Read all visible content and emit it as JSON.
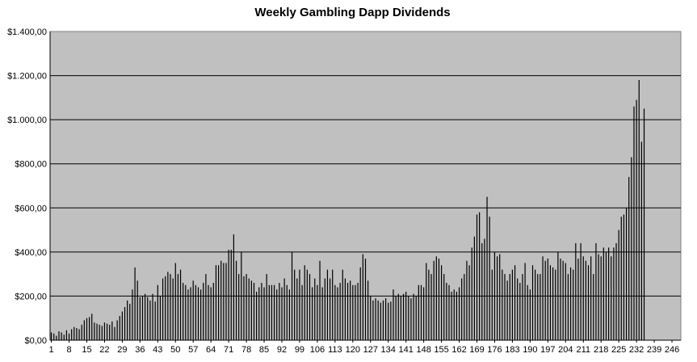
{
  "chart_data": {
    "type": "bar",
    "title": "Weekly Gambling Dapp Dividends",
    "xlabel": "",
    "ylabel": "",
    "ylim": [
      0,
      1400
    ],
    "y_ticks": [
      "$0,00",
      "$200,00",
      "$400,00",
      "$600,00",
      "$800,00",
      "$1.000,00",
      "$1.200,00",
      "$1.400,00"
    ],
    "x_ticks": [
      "1",
      "8",
      "15",
      "22",
      "29",
      "36",
      "43",
      "50",
      "57",
      "64",
      "71",
      "78",
      "85",
      "92",
      "99",
      "106",
      "113",
      "120",
      "127",
      "134",
      "141",
      "148",
      "155",
      "162",
      "169",
      "176",
      "183",
      "190",
      "197",
      "204",
      "211",
      "218",
      "225",
      "232",
      "239",
      "246"
    ],
    "x_range": [
      1,
      249
    ],
    "grid": "horizontal",
    "colors": {
      "plot_bg": "#c0c0c0",
      "bar": "#000000",
      "grid": "#000000"
    },
    "values": [
      35,
      30,
      20,
      40,
      35,
      25,
      45,
      30,
      50,
      60,
      55,
      50,
      70,
      90,
      100,
      105,
      120,
      80,
      75,
      70,
      65,
      80,
      75,
      70,
      85,
      60,
      90,
      110,
      130,
      150,
      180,
      165,
      230,
      330,
      270,
      195,
      200,
      210,
      195,
      180,
      210,
      175,
      250,
      200,
      280,
      290,
      310,
      300,
      280,
      350,
      300,
      320,
      260,
      250,
      230,
      240,
      270,
      250,
      240,
      230,
      260,
      300,
      250,
      240,
      260,
      340,
      340,
      360,
      350,
      350,
      410,
      410,
      480,
      360,
      300,
      400,
      290,
      300,
      280,
      270,
      260,
      220,
      240,
      260,
      240,
      300,
      250,
      250,
      250,
      230,
      260,
      240,
      280,
      250,
      230,
      400,
      320,
      280,
      320,
      250,
      340,
      320,
      300,
      240,
      280,
      250,
      360,
      240,
      280,
      320,
      280,
      320,
      250,
      240,
      260,
      320,
      280,
      260,
      270,
      250,
      250,
      260,
      330,
      390,
      370,
      270,
      200,
      180,
      190,
      180,
      170,
      180,
      190,
      170,
      175,
      230,
      200,
      210,
      200,
      210,
      220,
      200,
      190,
      210,
      200,
      250,
      250,
      240,
      350,
      320,
      300,
      360,
      380,
      370,
      340,
      300,
      260,
      250,
      220,
      230,
      220,
      240,
      280,
      300,
      360,
      340,
      420,
      470,
      570,
      580,
      440,
      460,
      650,
      560,
      320,
      400,
      380,
      390,
      320,
      300,
      270,
      300,
      320,
      340,
      280,
      260,
      300,
      350,
      250,
      230,
      340,
      320,
      300,
      300,
      380,
      360,
      370,
      340,
      330,
      320,
      400,
      370,
      360,
      350,
      300,
      330,
      320,
      440,
      370,
      440,
      380,
      360,
      340,
      380,
      300,
      440,
      390,
      380,
      420,
      400,
      420,
      380,
      420,
      440,
      500,
      560,
      570,
      600,
      740,
      830,
      1060,
      1090,
      1180,
      900,
      1050
    ]
  }
}
